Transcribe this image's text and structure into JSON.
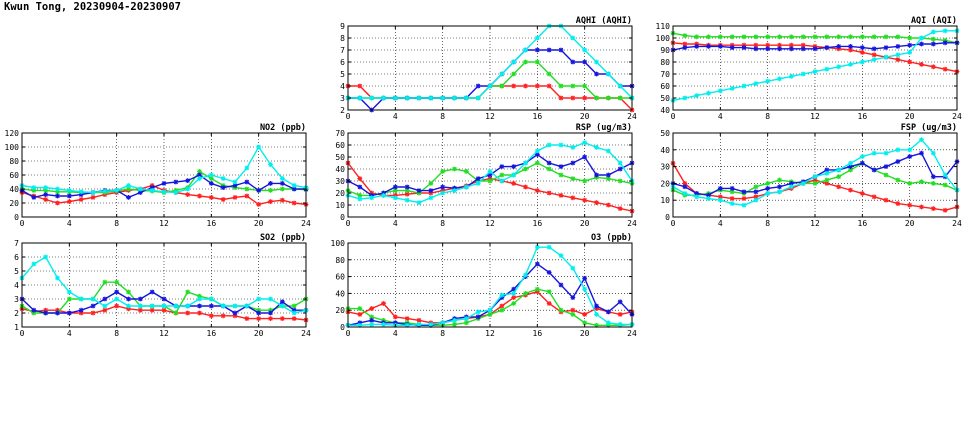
{
  "page": {
    "title": "Kwun Tong, 20230904-20230907"
  },
  "colors": {
    "red": "#ff2020",
    "green": "#22dd22",
    "blue": "#1515dd",
    "cyan": "#00eeee"
  },
  "chart_data": [
    {
      "id": "aqhi",
      "type": "line",
      "title": "AQHI (AQHI)",
      "xlim": [
        0,
        24
      ],
      "ylim": [
        2,
        9
      ],
      "xticks": [
        "0",
        "4",
        "8",
        "12",
        "16",
        "20",
        "24"
      ],
      "yticks": [
        "2",
        "3",
        "4",
        "5",
        "6",
        "7",
        "8",
        "9"
      ],
      "x": [
        0,
        1,
        2,
        3,
        4,
        5,
        6,
        7,
        8,
        9,
        10,
        11,
        12,
        13,
        14,
        15,
        16,
        17,
        18,
        19,
        20,
        21,
        22,
        23,
        24
      ],
      "series": [
        {
          "color": "red",
          "values": [
            4,
            4,
            3,
            3,
            3,
            3,
            3,
            3,
            3,
            3,
            3,
            3,
            4,
            4,
            4,
            4,
            4,
            4,
            3,
            3,
            3,
            3,
            3,
            3,
            2
          ]
        },
        {
          "color": "green",
          "values": [
            3,
            3,
            3,
            3,
            3,
            3,
            3,
            3,
            3,
            3,
            3,
            3,
            4,
            4,
            5,
            6,
            6,
            5,
            4,
            4,
            4,
            3,
            3,
            3,
            3
          ]
        },
        {
          "color": "blue",
          "values": [
            3,
            3,
            2,
            3,
            3,
            3,
            3,
            3,
            3,
            3,
            3,
            4,
            4,
            5,
            6,
            7,
            7,
            7,
            7,
            6,
            6,
            5,
            5,
            4,
            4
          ]
        },
        {
          "color": "cyan",
          "values": [
            3,
            3,
            3,
            3,
            3,
            3,
            3,
            3,
            3,
            3,
            3,
            3,
            4,
            5,
            6,
            7,
            8,
            9,
            9,
            8,
            7,
            6,
            5,
            4,
            3
          ]
        }
      ]
    },
    {
      "id": "aqi",
      "type": "line",
      "title": "AQI (AQI)",
      "xlim": [
        0,
        24
      ],
      "ylim": [
        40,
        110
      ],
      "xticks": [
        "0",
        "4",
        "8",
        "12",
        "16",
        "20",
        "24"
      ],
      "yticks": [
        "40",
        "50",
        "60",
        "70",
        "80",
        "90",
        "100",
        "110"
      ],
      "x": [
        0,
        1,
        2,
        3,
        4,
        5,
        6,
        7,
        8,
        9,
        10,
        11,
        12,
        13,
        14,
        15,
        16,
        17,
        18,
        19,
        20,
        21,
        22,
        23,
        24
      ],
      "series": [
        {
          "color": "red",
          "values": [
            96,
            95,
            95,
            94,
            94,
            94,
            94,
            94,
            94,
            94,
            94,
            94,
            93,
            92,
            91,
            90,
            88,
            86,
            84,
            82,
            80,
            78,
            76,
            74,
            72
          ]
        },
        {
          "color": "green",
          "values": [
            104,
            102,
            101,
            101,
            101,
            101,
            101,
            101,
            101,
            101,
            101,
            101,
            101,
            101,
            101,
            101,
            101,
            101,
            101,
            101,
            100,
            100,
            99,
            98,
            96
          ]
        },
        {
          "color": "blue",
          "values": [
            90,
            92,
            93,
            93,
            93,
            92,
            92,
            91,
            91,
            91,
            91,
            91,
            91,
            92,
            93,
            93,
            92,
            91,
            92,
            93,
            94,
            95,
            95,
            96,
            96
          ]
        },
        {
          "color": "cyan",
          "values": [
            48,
            50,
            52,
            54,
            56,
            58,
            60,
            62,
            64,
            66,
            68,
            70,
            72,
            74,
            76,
            78,
            80,
            82,
            84,
            86,
            88,
            100,
            105,
            106,
            106
          ]
        }
      ]
    },
    {
      "id": "no2",
      "type": "line",
      "title": "NO2 (ppb)",
      "xlim": [
        0,
        24
      ],
      "ylim": [
        0,
        120
      ],
      "xticks": [
        "0",
        "4",
        "8",
        "12",
        "16",
        "20",
        "24"
      ],
      "yticks": [
        "0",
        "20",
        "40",
        "60",
        "80",
        "100",
        "120"
      ],
      "x": [
        0,
        1,
        2,
        3,
        4,
        5,
        6,
        7,
        8,
        9,
        10,
        11,
        12,
        13,
        14,
        15,
        16,
        17,
        18,
        19,
        20,
        21,
        22,
        23,
        24
      ],
      "series": [
        {
          "color": "red",
          "values": [
            35,
            30,
            25,
            20,
            22,
            25,
            28,
            32,
            35,
            38,
            40,
            45,
            38,
            35,
            32,
            30,
            28,
            25,
            28,
            30,
            18,
            22,
            24,
            20,
            18
          ]
        },
        {
          "color": "green",
          "values": [
            40,
            38,
            38,
            36,
            36,
            35,
            35,
            35,
            37,
            40,
            38,
            37,
            35,
            38,
            42,
            65,
            55,
            45,
            42,
            40,
            38,
            38,
            40,
            40,
            39
          ]
        },
        {
          "color": "blue",
          "values": [
            38,
            28,
            32,
            30,
            30,
            32,
            35,
            38,
            38,
            28,
            35,
            42,
            48,
            50,
            52,
            60,
            48,
            42,
            45,
            50,
            38,
            48,
            48,
            40,
            40
          ]
        },
        {
          "color": "cyan",
          "values": [
            45,
            42,
            42,
            40,
            38,
            36,
            35,
            37,
            38,
            45,
            40,
            38,
            36,
            35,
            40,
            55,
            60,
            55,
            50,
            70,
            100,
            75,
            55,
            45,
            42
          ]
        }
      ]
    },
    {
      "id": "rsp",
      "type": "line",
      "title": "RSP (ug/m3)",
      "xlim": [
        0,
        24
      ],
      "ylim": [
        0,
        70
      ],
      "xticks": [
        "0",
        "4",
        "8",
        "12",
        "16",
        "20",
        "24"
      ],
      "yticks": [
        "0",
        "10",
        "20",
        "30",
        "40",
        "50",
        "60",
        "70"
      ],
      "x": [
        0,
        1,
        2,
        3,
        4,
        5,
        6,
        7,
        8,
        9,
        10,
        11,
        12,
        13,
        14,
        15,
        16,
        17,
        18,
        19,
        20,
        21,
        22,
        23,
        24
      ],
      "series": [
        {
          "color": "red",
          "values": [
            45,
            32,
            20,
            18,
            18,
            19,
            20,
            20,
            22,
            24,
            26,
            30,
            32,
            30,
            28,
            25,
            22,
            20,
            18,
            16,
            14,
            12,
            10,
            7,
            5
          ]
        },
        {
          "color": "green",
          "values": [
            22,
            18,
            18,
            20,
            22,
            22,
            20,
            28,
            38,
            40,
            38,
            30,
            30,
            35,
            35,
            40,
            45,
            40,
            35,
            32,
            30,
            33,
            32,
            30,
            28
          ]
        },
        {
          "color": "blue",
          "values": [
            30,
            25,
            18,
            20,
            25,
            25,
            22,
            22,
            25,
            24,
            25,
            32,
            35,
            42,
            42,
            45,
            52,
            45,
            42,
            45,
            50,
            35,
            35,
            40,
            45
          ]
        },
        {
          "color": "cyan",
          "values": [
            18,
            15,
            16,
            18,
            16,
            14,
            12,
            16,
            20,
            22,
            25,
            28,
            38,
            30,
            35,
            45,
            55,
            60,
            60,
            58,
            62,
            58,
            55,
            45,
            30
          ]
        }
      ]
    },
    {
      "id": "fsp",
      "type": "line",
      "title": "FSP (ug/m3)",
      "xlim": [
        0,
        24
      ],
      "ylim": [
        0,
        50
      ],
      "xticks": [
        "0",
        "4",
        "8",
        "12",
        "16",
        "20",
        "24"
      ],
      "yticks": [
        "0",
        "10",
        "20",
        "30",
        "40",
        "50"
      ],
      "x": [
        0,
        1,
        2,
        3,
        4,
        5,
        6,
        7,
        8,
        9,
        10,
        11,
        12,
        13,
        14,
        15,
        16,
        17,
        18,
        19,
        20,
        21,
        22,
        23,
        24
      ],
      "series": [
        {
          "color": "red",
          "values": [
            32,
            20,
            14,
            13,
            12,
            11,
            11,
            12,
            14,
            15,
            17,
            20,
            22,
            20,
            18,
            16,
            14,
            12,
            10,
            8,
            7,
            6,
            5,
            4,
            6
          ]
        },
        {
          "color": "green",
          "values": [
            16,
            13,
            13,
            14,
            16,
            15,
            14,
            18,
            20,
            22,
            21,
            20,
            20,
            22,
            24,
            28,
            32,
            28,
            25,
            22,
            20,
            21,
            20,
            19,
            16
          ]
        },
        {
          "color": "blue",
          "values": [
            20,
            18,
            14,
            13,
            17,
            17,
            15,
            15,
            17,
            18,
            20,
            21,
            24,
            28,
            28,
            30,
            32,
            28,
            30,
            33,
            36,
            38,
            24,
            24,
            33
          ]
        },
        {
          "color": "cyan",
          "values": [
            18,
            14,
            12,
            11,
            10,
            8,
            7,
            10,
            14,
            15,
            18,
            20,
            24,
            26,
            28,
            32,
            36,
            38,
            38,
            40,
            40,
            46,
            38,
            25,
            16
          ]
        }
      ]
    },
    {
      "id": "so2",
      "type": "line",
      "title": "SO2 (ppb)",
      "xlim": [
        0,
        24
      ],
      "ylim": [
        1,
        7
      ],
      "xticks": [
        "0",
        "4",
        "8",
        "12",
        "16",
        "20",
        "24"
      ],
      "yticks": [
        "1",
        "2",
        "3",
        "4",
        "5",
        "6",
        "7"
      ],
      "x": [
        0,
        1,
        2,
        3,
        4,
        5,
        6,
        7,
        8,
        9,
        10,
        11,
        12,
        13,
        14,
        15,
        16,
        17,
        18,
        19,
        20,
        21,
        22,
        23,
        24
      ],
      "series": [
        {
          "color": "red",
          "values": [
            2.3,
            2.1,
            2.2,
            2.2,
            2,
            2,
            2,
            2.2,
            2.5,
            2.3,
            2.2,
            2.2,
            2.2,
            2,
            2,
            2,
            1.8,
            1.8,
            1.8,
            1.6,
            1.6,
            1.6,
            1.6,
            1.6,
            1.5
          ]
        },
        {
          "color": "green",
          "values": [
            2.5,
            2,
            2,
            2,
            3,
            3,
            3,
            4.2,
            4.2,
            3.5,
            2.5,
            2.5,
            2.5,
            2,
            3.5,
            3.2,
            3,
            2.5,
            2.5,
            2.5,
            2.2,
            2.2,
            2.5,
            2.5,
            3
          ]
        },
        {
          "color": "blue",
          "values": [
            3,
            2.2,
            2,
            2,
            2,
            2.2,
            2.5,
            3,
            3.5,
            3,
            3,
            3.5,
            3,
            2.5,
            2.5,
            2.5,
            2.5,
            2.5,
            2,
            2.5,
            2,
            2,
            2.8,
            2.2,
            2.2
          ]
        },
        {
          "color": "cyan",
          "values": [
            4.5,
            5.5,
            6,
            4.5,
            3.5,
            3,
            3,
            2.5,
            3,
            2.5,
            2.5,
            2.5,
            2.5,
            2.5,
            2.5,
            3,
            3,
            2.5,
            2.5,
            2.5,
            3,
            3,
            2.5,
            2,
            2.2
          ]
        }
      ]
    },
    {
      "id": "o3",
      "type": "line",
      "title": "O3 (ppb)",
      "xlim": [
        0,
        24
      ],
      "ylim": [
        0,
        100
      ],
      "xticks": [
        "0",
        "4",
        "8",
        "12",
        "16",
        "20",
        "24"
      ],
      "yticks": [
        "0",
        "20",
        "40",
        "60",
        "80",
        "100"
      ],
      "x": [
        0,
        1,
        2,
        3,
        4,
        5,
        6,
        7,
        8,
        9,
        10,
        11,
        12,
        13,
        14,
        15,
        16,
        17,
        18,
        19,
        20,
        21,
        22,
        23,
        24
      ],
      "series": [
        {
          "color": "red",
          "values": [
            18,
            15,
            22,
            28,
            12,
            10,
            8,
            5,
            5,
            8,
            10,
            12,
            15,
            25,
            35,
            38,
            42,
            28,
            18,
            20,
            15,
            22,
            18,
            15,
            18
          ]
        },
        {
          "color": "green",
          "values": [
            22,
            22,
            12,
            8,
            5,
            5,
            3,
            2,
            2,
            3,
            5,
            10,
            15,
            20,
            28,
            40,
            45,
            42,
            20,
            15,
            5,
            2,
            2,
            2,
            3
          ]
        },
        {
          "color": "blue",
          "values": [
            2,
            5,
            8,
            5,
            5,
            3,
            2,
            2,
            5,
            10,
            12,
            12,
            20,
            35,
            45,
            60,
            75,
            65,
            50,
            35,
            58,
            25,
            18,
            30,
            15
          ]
        },
        {
          "color": "cyan",
          "values": [
            2,
            2,
            3,
            3,
            2,
            2,
            3,
            3,
            5,
            8,
            10,
            18,
            20,
            38,
            40,
            62,
            95,
            95,
            85,
            70,
            45,
            15,
            5,
            3,
            3
          ]
        }
      ]
    }
  ]
}
